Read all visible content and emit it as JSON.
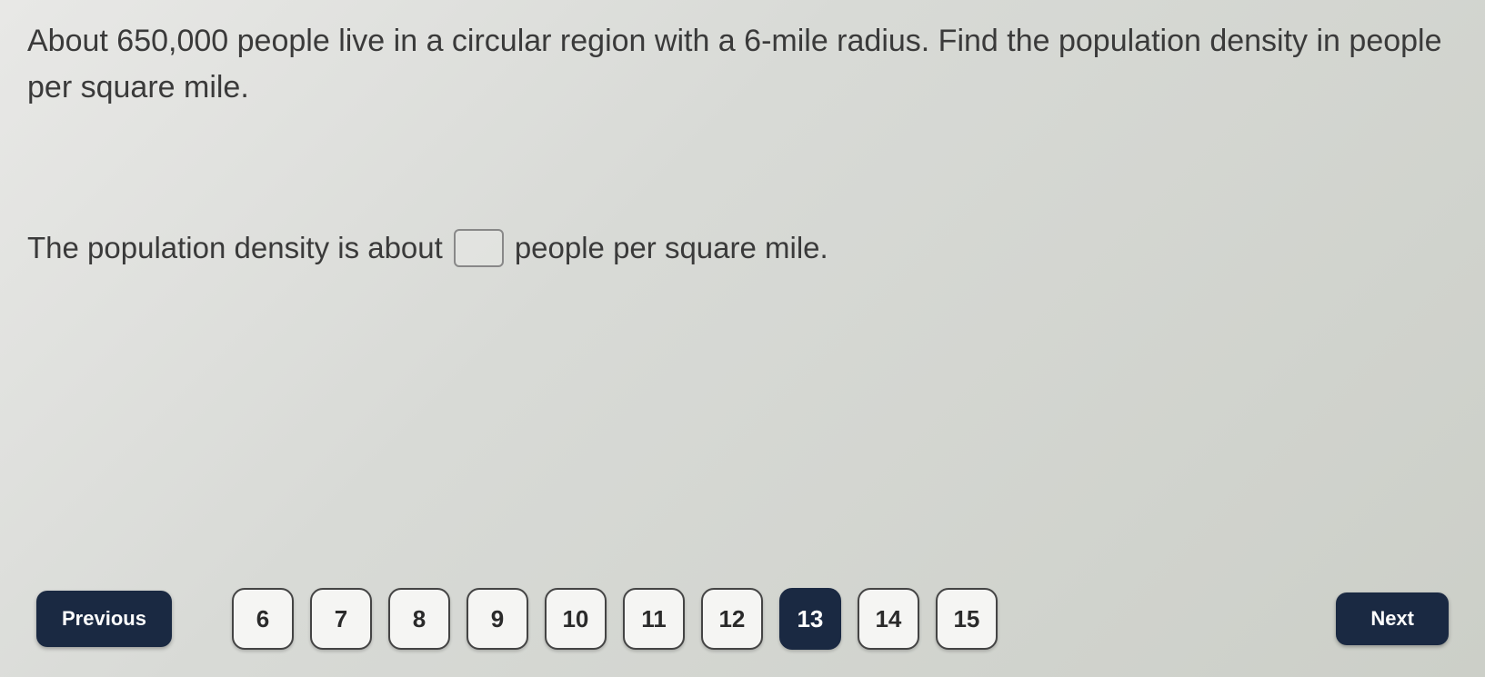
{
  "question": {
    "text": "About 650,000 people live in a circular region with a 6-mile radius. Find the population density in people per square mile."
  },
  "answer": {
    "prefix": "The population density is about",
    "suffix": "people per square mile.",
    "input_value": ""
  },
  "navigation": {
    "previous_label": "Previous",
    "next_label": "Next",
    "pages": [
      {
        "label": "6",
        "active": false
      },
      {
        "label": "7",
        "active": false
      },
      {
        "label": "8",
        "active": false
      },
      {
        "label": "9",
        "active": false
      },
      {
        "label": "10",
        "active": false
      },
      {
        "label": "11",
        "active": false
      },
      {
        "label": "12",
        "active": false
      },
      {
        "label": "13",
        "active": true
      },
      {
        "label": "14",
        "active": false
      },
      {
        "label": "15",
        "active": false
      }
    ]
  },
  "colors": {
    "text": "#3a3a3a",
    "button_dark_bg": "#1a2942",
    "button_light_bg": "#f5f5f3",
    "button_border": "#444444",
    "background_start": "#e8e8e6",
    "background_end": "#cccfc8"
  },
  "typography": {
    "question_fontsize": 34,
    "answer_fontsize": 33,
    "nav_button_fontsize": 22,
    "page_button_fontsize": 26
  }
}
